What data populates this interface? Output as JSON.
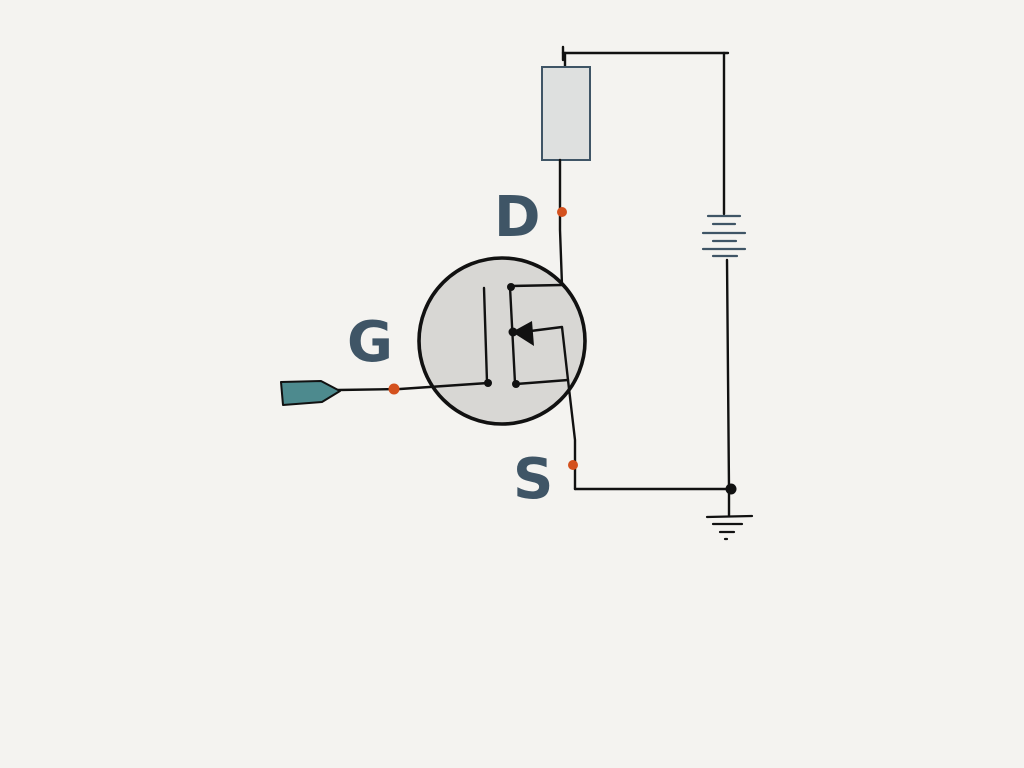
{
  "colors": {
    "background": "#f4f3f0",
    "ink": "#111111",
    "label": "#3f5566",
    "terminal_dot": "#d4511e",
    "mosfet_body": "#d8d7d4",
    "resistor_fill": "#dee0df",
    "resistor_stroke": "#3f5566",
    "gate_input_fill": "#4d8a8e",
    "battery_stroke": "#3f5566"
  },
  "labels": {
    "drain": "D",
    "gate": "G",
    "source": "S"
  },
  "icons": {
    "gate_input": "input-arrow-icon",
    "ground": "ground-icon",
    "battery": "battery-icon",
    "resistor": "resistor-icon"
  }
}
